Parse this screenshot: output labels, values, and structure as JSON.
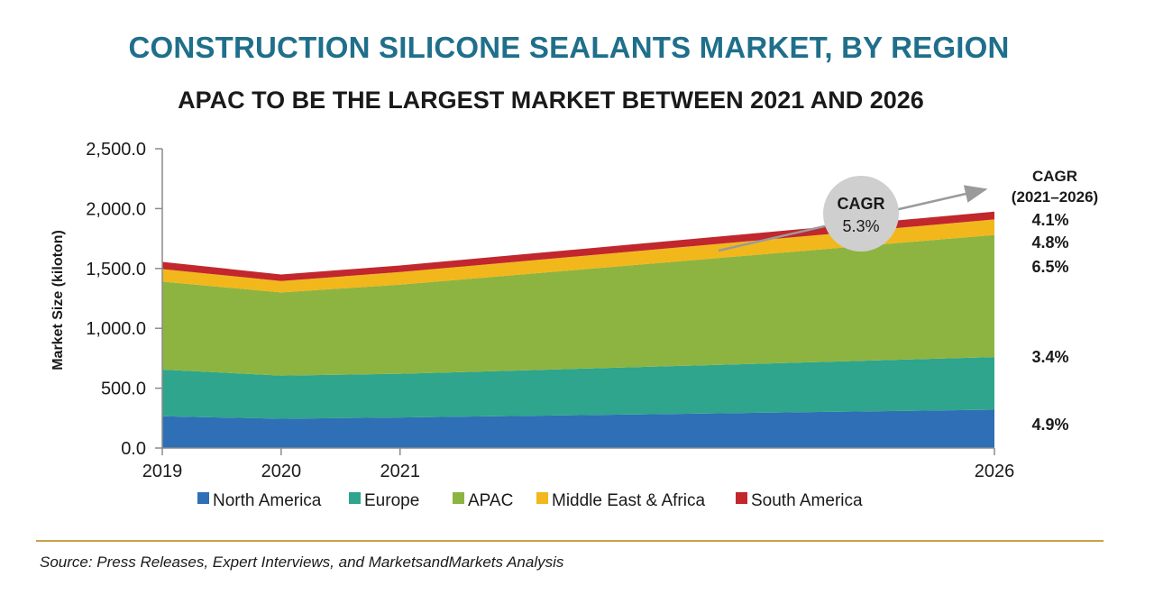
{
  "header": {
    "title": "CONSTRUCTION SILICONE SEALANTS MARKET, BY REGION",
    "subtitle": "APAC TO BE THE LARGEST MARKET BETWEEN 2021 AND 2026"
  },
  "footer": {
    "source": "Source: Press Releases, Expert Interviews, and MarketsandMarkets Analysis"
  },
  "chart_data": {
    "type": "area",
    "stacked": true,
    "x": [
      "2019",
      "2020",
      "2021",
      "2026"
    ],
    "ylabel": "Market Size (kiloton)",
    "ylim": [
      0,
      2500
    ],
    "yticks": [
      "0.0",
      "500.0",
      "1,000.0",
      "1,500.0",
      "2,000.0",
      "2,500.0"
    ],
    "grid": false,
    "legend_position": "bottom",
    "series": [
      {
        "name": "North America",
        "color": "#2f6fb5",
        "values": [
          265,
          245,
          255,
          320
        ],
        "cagr": "4.9%"
      },
      {
        "name": "Europe",
        "color": "#2ea58c",
        "values": [
          390,
          360,
          365,
          440
        ],
        "cagr": "3.4%"
      },
      {
        "name": "APAC",
        "color": "#8db441",
        "values": [
          735,
          695,
          745,
          1020
        ],
        "cagr": "6.5%"
      },
      {
        "name": "Middle East & Africa",
        "color": "#f2b71b",
        "values": [
          105,
          95,
          105,
          130
        ],
        "cagr": "4.8%"
      },
      {
        "name": "South America",
        "color": "#c1272d",
        "values": [
          60,
          55,
          55,
          65
        ],
        "cagr": "4.1%"
      }
    ],
    "cagr_header": [
      "CAGR",
      "(2021–2026)"
    ],
    "overall_cagr": {
      "label": "CAGR",
      "value": "5.3%"
    }
  }
}
